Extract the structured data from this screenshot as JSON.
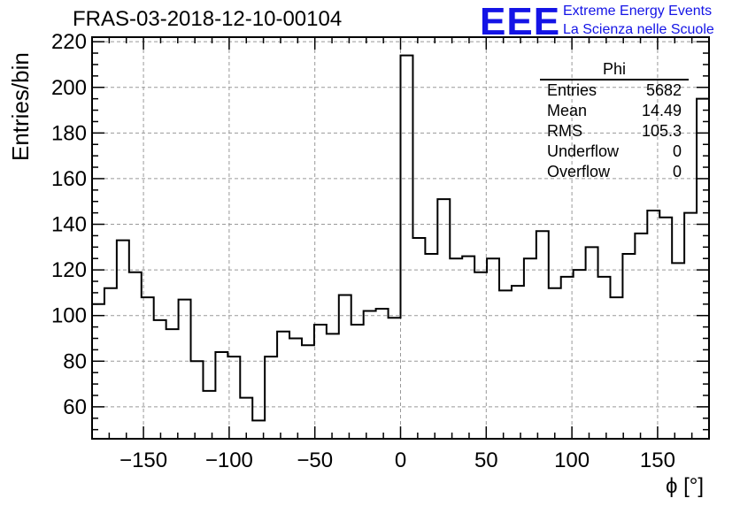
{
  "title": "FRAS-03-2018-12-10-00104",
  "logo": {
    "mark": "EEE",
    "line1": "Extreme Energy Events",
    "line2": "La Scienza nelle Scuole",
    "color": "#1414e6"
  },
  "stats_box": {
    "name": "Phi",
    "rows": [
      {
        "label": "Entries",
        "value": "5682"
      },
      {
        "label": "Mean",
        "value": "14.49"
      },
      {
        "label": "RMS",
        "value": "105.3"
      },
      {
        "label": "Underflow",
        "value": "0"
      },
      {
        "label": "Overflow",
        "value": "0"
      }
    ]
  },
  "chart_data": {
    "type": "histogram",
    "xlabel": "ϕ [°]",
    "ylabel": "Entries/bin",
    "xlim": [
      -180,
      180
    ],
    "ylim": [
      46,
      222
    ],
    "bin_width": 7.2,
    "x_ticks": [
      -150,
      -100,
      -50,
      0,
      50,
      100,
      150
    ],
    "x_tick_labels": [
      "−150",
      "−100",
      "−50",
      "0",
      "50",
      "100",
      "150"
    ],
    "y_ticks": [
      60,
      80,
      100,
      120,
      140,
      160,
      180,
      200,
      220
    ],
    "grid": true,
    "values": [
      105,
      112,
      133,
      119,
      108,
      98,
      94,
      107,
      80,
      67,
      84,
      82,
      64,
      54,
      82,
      93,
      90,
      87,
      96,
      92,
      109,
      96,
      102,
      103,
      99,
      214,
      134,
      127,
      151,
      125,
      126,
      119,
      125,
      111,
      113,
      125,
      137,
      112,
      117,
      120,
      130,
      117,
      108,
      127,
      136,
      146,
      143,
      123,
      145,
      195
    ]
  }
}
